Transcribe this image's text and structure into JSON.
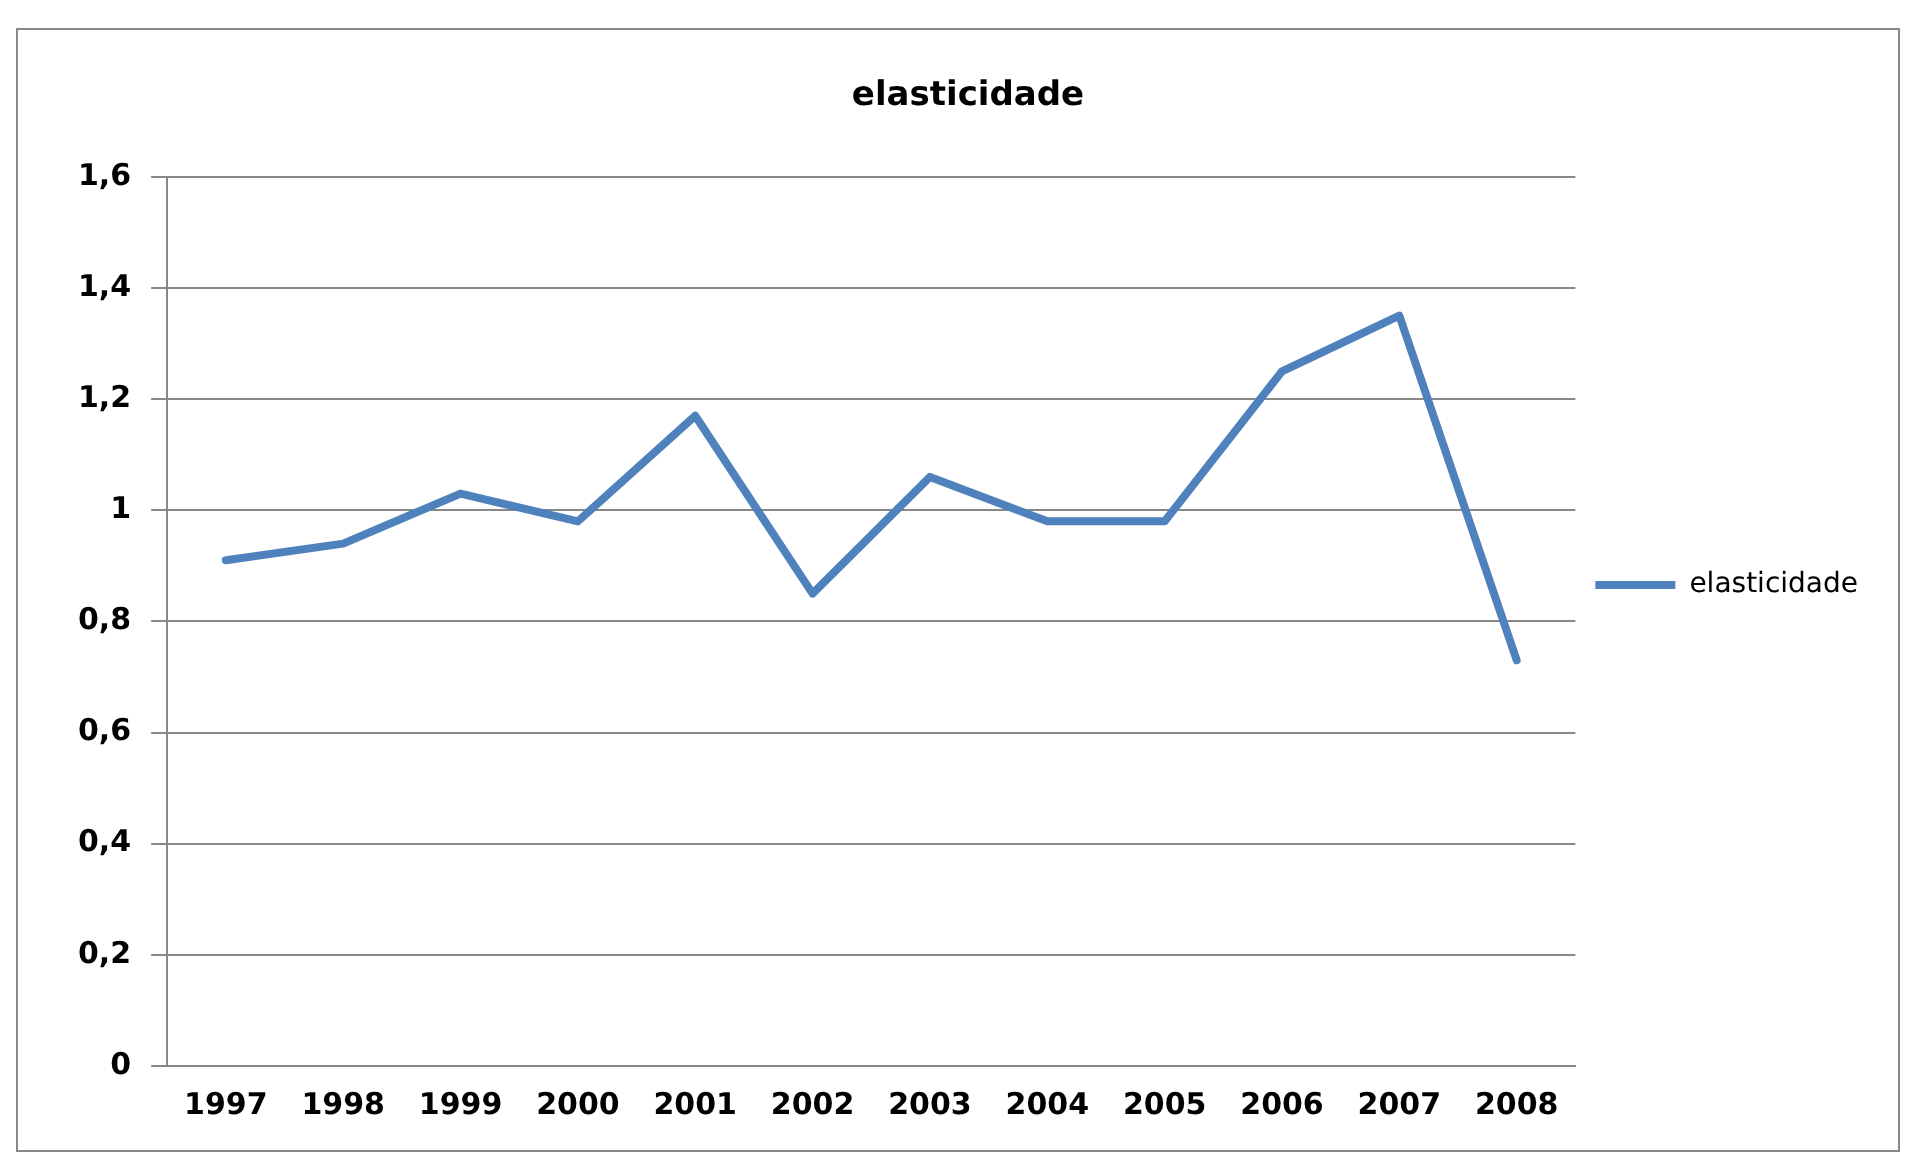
{
  "chart_data": {
    "type": "line",
    "title": "elasticidade",
    "categories": [
      "1997",
      "1998",
      "1999",
      "2000",
      "2001",
      "2002",
      "2003",
      "2004",
      "2005",
      "2006",
      "2007",
      "2008"
    ],
    "series": [
      {
        "name": "elasticidade",
        "color": "#4f81bd",
        "values": [
          0.91,
          0.94,
          1.03,
          0.98,
          1.17,
          0.85,
          1.06,
          0.98,
          0.98,
          1.25,
          1.35,
          0.73
        ]
      }
    ],
    "ylim": [
      0,
      1.6
    ],
    "yticks": [
      0,
      {
        "value": 0.2,
        "label": "0,2"
      },
      {
        "value": 0.4,
        "label": "0,4"
      },
      {
        "value": 0.6,
        "label": "0,6"
      },
      {
        "value": 0.8,
        "label": "0,8"
      },
      1,
      {
        "value": 1.2,
        "label": "1,2"
      },
      {
        "value": 1.4,
        "label": "1,4"
      },
      {
        "value": 1.6,
        "label": "1,6"
      }
    ],
    "grid": "y",
    "legend": "right",
    "marker": "none",
    "line_style": "solid"
  }
}
